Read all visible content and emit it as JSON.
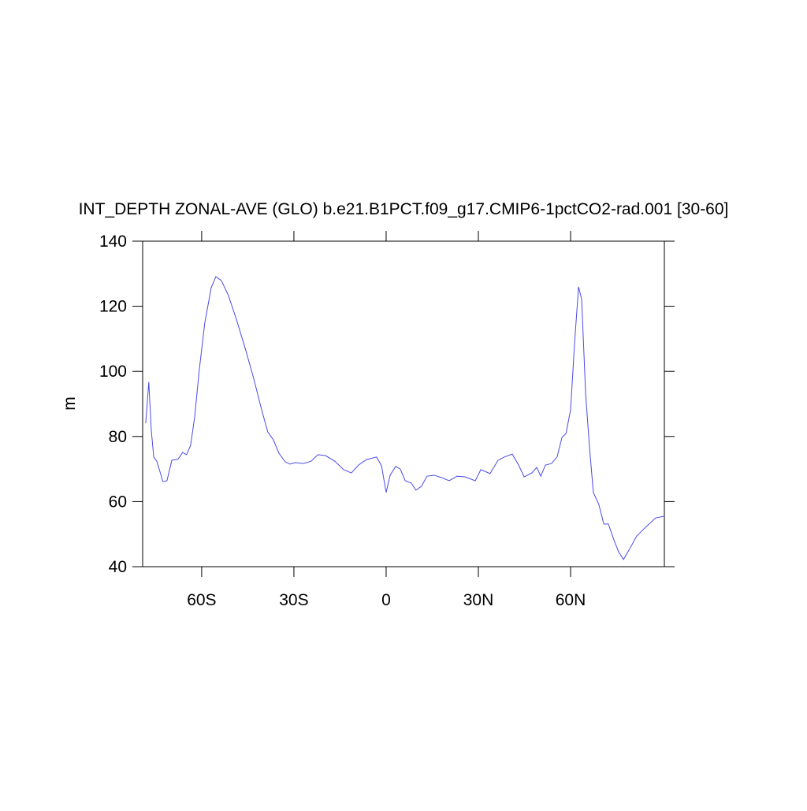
{
  "chart_data": {
    "type": "line",
    "title": "INT_DEPTH ZONAL-AVE (GLO) b.e21.B1PCT.f09_g17.CMIP6-1pctCO2-rad.001 [30-60]",
    "y_label": "m",
    "x": [
      -78.2,
      -77.2,
      -76.4,
      -75.6,
      -74.6,
      -73.6,
      -72.6,
      -71.3,
      -69.7,
      -67.7,
      -66.2,
      -64.9,
      -63.6,
      -62.3,
      -60.8,
      -59.0,
      -56.9,
      -55.4,
      -53.6,
      -51.3,
      -48.7,
      -45.6,
      -43.1,
      -40.5,
      -38.5,
      -36.7,
      -34.9,
      -32.8,
      -31.3,
      -29.5,
      -26.9,
      -24.4,
      -22.2,
      -19.7,
      -16.7,
      -13.8,
      -11.3,
      -9.0,
      -6.4,
      -3.1,
      -1.5,
      0,
      1.3,
      3.1,
      4.6,
      6.2,
      8.2,
      9.7,
      11.5,
      13.3,
      15.6,
      17.9,
      20.5,
      23.1,
      25.6,
      29.0,
      30.8,
      33.8,
      36.4,
      38.5,
      41.0,
      43.1,
      44.9,
      47.4,
      49.0,
      50.3,
      51.8,
      53.8,
      55.6,
      57.2,
      58.5,
      60.0,
      61.3,
      62.6,
      63.6,
      64.9,
      66.2,
      67.4,
      69.2,
      70.8,
      72.3,
      74.1,
      75.6,
      77.2,
      79.0,
      81.5,
      84.6,
      87.7,
      90.5
    ],
    "series": [
      {
        "color": "#4a4ae8",
        "values": [
          84.1,
          96.7,
          82.1,
          73.7,
          72.4,
          69.3,
          66.1,
          66.4,
          72.7,
          73.0,
          75.1,
          74.4,
          77.3,
          85.8,
          100.3,
          114.8,
          125.7,
          129.1,
          127.9,
          123.3,
          116.0,
          106.3,
          97.9,
          88.2,
          81.4,
          79.0,
          74.9,
          72.2,
          71.5,
          72.0,
          71.7,
          72.4,
          74.4,
          74.1,
          72.4,
          69.8,
          68.8,
          71.2,
          72.9,
          73.7,
          71.0,
          62.8,
          68.1,
          70.8,
          70.0,
          66.4,
          65.7,
          63.5,
          64.7,
          67.8,
          68.1,
          67.4,
          66.4,
          67.8,
          67.6,
          66.4,
          69.8,
          68.6,
          72.7,
          73.7,
          74.6,
          71.2,
          67.6,
          68.8,
          70.5,
          67.8,
          71.2,
          71.7,
          73.7,
          79.7,
          80.9,
          88.2,
          108.8,
          126.0,
          122.1,
          93.0,
          76.1,
          62.8,
          59.1,
          53.1,
          53.1,
          48.2,
          44.6,
          42.2,
          45.1,
          49.4,
          52.3,
          55.0,
          55.5
        ]
      }
    ],
    "xlim": [
      -79.2,
      90.5
    ],
    "xticks": [
      {
        "value": -60,
        "label": "60S"
      },
      {
        "value": -30,
        "label": "30S"
      },
      0,
      {
        "value": 30,
        "label": "30N"
      },
      {
        "value": 60,
        "label": "60N"
      }
    ],
    "ylim": [
      40,
      140
    ],
    "yticks": [
      40,
      60,
      80,
      100,
      120,
      140
    ]
  }
}
